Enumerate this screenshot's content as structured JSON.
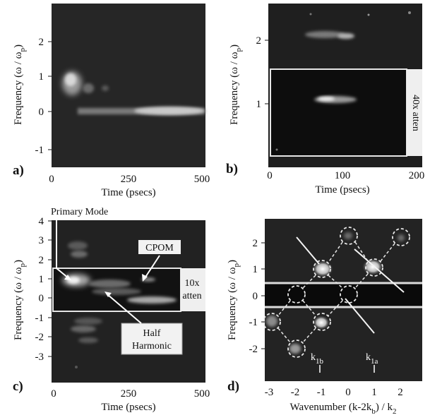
{
  "figure": {
    "panels": [
      {
        "id": "a",
        "label": "a)",
        "xlabel": "Time (psecs)",
        "ylabel_main": "Frequency  (ω / ω",
        "ylabel_sub": "p",
        "ylabel_close": ")",
        "xticks": [
          "0",
          "250",
          "500"
        ],
        "yticks": [
          "2",
          "1",
          "0",
          "-1"
        ]
      },
      {
        "id": "b",
        "label": "b)",
        "xlabel": "Time (psecs)",
        "ylabel_main": "Frequency  (ω / ω",
        "ylabel_sub": "p",
        "ylabel_close": ")",
        "xticks": [
          "0",
          "100",
          "200"
        ],
        "yticks": [
          "2",
          "1"
        ],
        "box_label": "40x atten"
      },
      {
        "id": "c",
        "label": "c)",
        "xlabel": "Time (psecs)",
        "ylabel_main": "Frequency  (ω / ω",
        "ylabel_sub": "p",
        "ylabel_close": ")",
        "xticks": [
          "0",
          "250",
          "500"
        ],
        "yticks": [
          "4",
          "3",
          "2",
          "1",
          "0",
          "-1",
          "-2",
          "-3"
        ],
        "box_label_line1": "10x",
        "box_label_line2": "atten",
        "annotations": {
          "primary": "Primary Mode",
          "cpom": "CPOM",
          "half_line1": "Half",
          "half_line2": "Harmonic"
        }
      },
      {
        "id": "d",
        "label": "d)",
        "xlabel_main": "Wavenumber (k-2k",
        "xlabel_sub1": "b",
        "xlabel_mid": ") / k",
        "xlabel_sub2": "2",
        "ylabel_main": "Frequency  (ω / ω",
        "ylabel_sub": "p",
        "ylabel_close": ")",
        "xticks": [
          "-3",
          "-2",
          "-1",
          "0",
          "1",
          "2"
        ],
        "yticks": [
          "2",
          "1",
          "0",
          "-1",
          "-2"
        ],
        "annotations": {
          "k1b_main": "k",
          "k1b_sub": "1b",
          "k1a_main": "k",
          "k1a_sub": "1a"
        }
      }
    ]
  }
}
